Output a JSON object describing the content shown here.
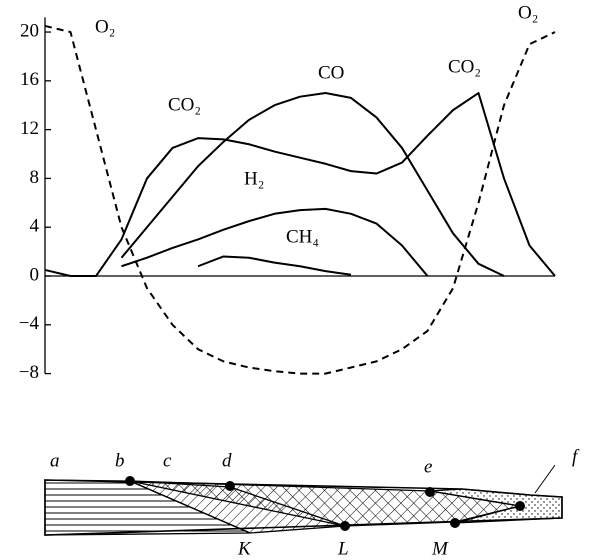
{
  "chart_data": {
    "type": "line",
    "x": [
      0,
      5,
      10,
      15,
      20,
      25,
      30,
      35,
      40,
      45,
      50,
      55,
      60,
      65,
      70,
      75,
      80,
      85,
      90,
      95,
      100
    ],
    "xlim": [
      0,
      100
    ],
    "ylim": [
      -8,
      21.2
    ],
    "yticks": [
      20,
      16,
      12,
      8,
      {
        "value": 4,
        "label": "4"
      },
      0,
      {
        "value": -4,
        "label": "−4"
      },
      {
        "value": -8,
        "label": "−8"
      }
    ],
    "series": [
      {
        "name": "O₂",
        "color": "#000000",
        "dashed": true,
        "values": [
          20.5,
          20,
          12,
          4,
          -1,
          -4,
          -6,
          -7,
          -7.5,
          -7.8,
          -8,
          -8,
          -7.5,
          -7,
          -6,
          -4.5,
          -1,
          6,
          14,
          19,
          20
        ]
      },
      {
        "name": "CO₂",
        "color": "#000000",
        "values": [
          0.5,
          0,
          0,
          3,
          8,
          10.5,
          11.3,
          11.2,
          10.8,
          10.2,
          9.7,
          9.2,
          8.6,
          8.4,
          9.3,
          11.5,
          13.6,
          15,
          8,
          2.5,
          0
        ]
      },
      {
        "name": "CO",
        "color": "#000000",
        "values": [
          null,
          null,
          null,
          1.5,
          4,
          6.5,
          9,
          11,
          12.8,
          14,
          14.7,
          15,
          14.6,
          13,
          10.5,
          7,
          3.5,
          1,
          0,
          null,
          null
        ]
      },
      {
        "name": "H₂",
        "color": "#000000",
        "values": [
          null,
          null,
          null,
          0.8,
          1.5,
          2.3,
          3,
          3.8,
          4.5,
          5.1,
          5.4,
          5.5,
          5.1,
          4.3,
          2.5,
          0,
          null,
          null,
          null,
          null,
          null
        ]
      },
      {
        "name": "CH₄",
        "color": "#000000",
        "values": [
          null,
          null,
          null,
          null,
          null,
          null,
          0.8,
          1.6,
          1.5,
          1.1,
          0.8,
          0.4,
          0.1,
          null,
          null,
          null,
          null,
          null,
          null,
          null,
          null
        ]
      }
    ]
  },
  "diagram": {
    "labels": [
      "a",
      "b",
      "c",
      "d",
      "e",
      "f",
      "K",
      "L",
      "M"
    ]
  }
}
